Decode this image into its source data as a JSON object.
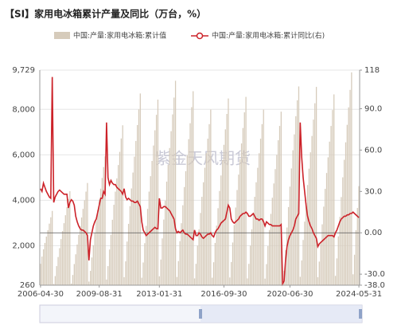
{
  "chart_data": {
    "type": "bar-line",
    "title": "【SI】家用电冰箱累计产量及同比（万台，%）",
    "watermark": "紫金天风期货",
    "categories": [
      "2006-04-30",
      null,
      null,
      null,
      null,
      null,
      null,
      null,
      null,
      null,
      null,
      null,
      null,
      null,
      null,
      null,
      null,
      null,
      null,
      null,
      null,
      null,
      null,
      null,
      null,
      null,
      null,
      null,
      null,
      null,
      null,
      null,
      null,
      null,
      null,
      null,
      null,
      null,
      null,
      null,
      "2009-08-31",
      null,
      null,
      null,
      null,
      null,
      null,
      null,
      null,
      null,
      null,
      null,
      null,
      null,
      null,
      null,
      null,
      null,
      null,
      null,
      null,
      null,
      null,
      null,
      null,
      null,
      null,
      null,
      null,
      null,
      null,
      null,
      null,
      null,
      null,
      null,
      null,
      null,
      null,
      null,
      null,
      "2013-01-31",
      null,
      null,
      null,
      null,
      null,
      null,
      null,
      null,
      null,
      null,
      null,
      null,
      null,
      null,
      null,
      null,
      null,
      null,
      null,
      null,
      null,
      null,
      null,
      null,
      null,
      null,
      null,
      null,
      null,
      null,
      null,
      null,
      null,
      null,
      null,
      null,
      null,
      null,
      null,
      null,
      null,
      null,
      null,
      "2016-09-30",
      null,
      null,
      null,
      null,
      null,
      null,
      null,
      null,
      null,
      null,
      null,
      null,
      null,
      null,
      null,
      null,
      null,
      null,
      null,
      null,
      null,
      null,
      null,
      null,
      null,
      null,
      null,
      null,
      null,
      null,
      null,
      null,
      null,
      null,
      null,
      null,
      null,
      null,
      null,
      null,
      null,
      null,
      null,
      null,
      "2020-06-30",
      null,
      null,
      null,
      null,
      null,
      null,
      null,
      null,
      null,
      null,
      null,
      null,
      null,
      null,
      null,
      null,
      null,
      null,
      null,
      null,
      null,
      null,
      null,
      null,
      null,
      null,
      null,
      null,
      null,
      null,
      null,
      null,
      null,
      null,
      null,
      null,
      null,
      null,
      null,
      null,
      null,
      null,
      null,
      null,
      null,
      null,
      "2024-05-31"
    ],
    "series": [
      {
        "name": "中国:产量:家用电冰箱:累计值",
        "color": "#d6cbbb",
        "values": [
          1200,
          1520,
          1840,
          2120,
          2400,
          2680,
          2970,
          3250,
          3530,
          310,
          660,
          1100,
          1500,
          1890,
          2290,
          2640,
          2990,
          3340,
          3700,
          4050,
          4400,
          330,
          710,
          1190,
          1620,
          2050,
          2480,
          2860,
          3240,
          3620,
          4000,
          4380,
          4760,
          420,
          890,
          1480,
          2020,
          2550,
          3080,
          3560,
          4030,
          4510,
          4980,
          5460,
          5930,
          510,
          1100,
          1830,
          2480,
          3140,
          3800,
          4380,
          4960,
          5550,
          6130,
          6720,
          7300,
          610,
          1310,
          2180,
          2960,
          3740,
          4520,
          5220,
          5920,
          6610,
          7310,
          8000,
          8700,
          590,
          1260,
          2110,
          2870,
          3620,
          4380,
          5060,
          5730,
          6410,
          7080,
          7760,
          8430,
          650,
          1390,
          2320,
          3150,
          3980,
          4820,
          5560,
          6300,
          7040,
          7780,
          8520,
          9260,
          620,
          1320,
          2200,
          2990,
          3780,
          4580,
          5280,
          5980,
          6690,
          7390,
          8100,
          8800,
          560,
          1200,
          2000,
          2720,
          3440,
          4150,
          4790,
          5430,
          6070,
          6710,
          7350,
          7990,
          590,
          1270,
          2120,
          2880,
          3650,
          4410,
          5090,
          5770,
          6440,
          7120,
          7800,
          8480,
          600,
          1280,
          2140,
          2910,
          3680,
          4450,
          5130,
          5810,
          6500,
          7180,
          7870,
          8550,
          560,
          1200,
          2000,
          2720,
          3440,
          4150,
          4790,
          5430,
          6070,
          6710,
          7350,
          7990,
          550,
          1190,
          1980,
          2690,
          3400,
          4110,
          4740,
          5370,
          6000,
          6640,
          7270,
          7900,
          420,
          890,
          1800,
          2800,
          3700,
          4600,
          5400,
          6200,
          6900,
          7700,
          8400,
          9010,
          630,
          1350,
          2250,
          3060,
          3870,
          4670,
          5390,
          6110,
          6830,
          7550,
          8270,
          8990,
          610,
          1300,
          2170,
          2940,
          3720,
          4500,
          5200,
          5890,
          6580,
          7270,
          7970,
          8660,
          670,
          1440,
          2410,
          3270,
          4140,
          5010,
          5780,
          6550,
          7320,
          8090,
          8860,
          9630,
          740,
          1600,
          2680,
          3660,
          4620
        ]
      },
      {
        "name": "中国:产量:家用电冰箱:累计同比(右)",
        "color": "#cc2229",
        "axis": "y2",
        "values": [
          32,
          30,
          36,
          33,
          30,
          28,
          26,
          25,
          113,
          22,
          26,
          28,
          30,
          31,
          30,
          29,
          28,
          28,
          28,
          18,
          22,
          24,
          23,
          20,
          12,
          8,
          5,
          3,
          2,
          2,
          1,
          0,
          -2,
          -20,
          -5,
          0,
          5,
          8,
          10,
          15,
          20,
          25,
          25,
          30,
          28,
          80,
          40,
          35,
          38,
          36,
          35,
          35,
          33,
          32,
          31,
          30,
          28,
          32,
          26,
          24,
          25,
          24,
          23,
          23,
          22,
          22,
          23,
          21,
          19,
          8,
          2,
          0,
          -2,
          -1,
          0,
          1,
          2,
          3,
          4,
          3,
          3,
          25,
          18,
          18,
          19,
          19,
          18,
          17,
          16,
          14,
          12,
          10,
          3,
          0,
          1,
          0,
          1,
          2,
          0,
          -1,
          -1,
          -2,
          -3,
          -4,
          -5,
          2,
          -2,
          -2,
          0,
          -1,
          -3,
          -4,
          -3,
          -2,
          -1,
          -1,
          0,
          -2,
          -3,
          0,
          2,
          3,
          5,
          7,
          8,
          9,
          10,
          15,
          20,
          18,
          10,
          8,
          7,
          8,
          9,
          10,
          12,
          13,
          14,
          14,
          15,
          14,
          12,
          12,
          13,
          14,
          12,
          10,
          10,
          9,
          10,
          10,
          8,
          5,
          8,
          7,
          6,
          6,
          5,
          5,
          5,
          5,
          5,
          5,
          6,
          -37,
          -35,
          -20,
          -10,
          -5,
          -2,
          0,
          2,
          5,
          10,
          12,
          14,
          80,
          55,
          40,
          30,
          20,
          12,
          8,
          5,
          3,
          0,
          -2,
          -4,
          -10,
          -8,
          -7,
          -6,
          -5,
          -4,
          -3,
          -2,
          -2,
          -2,
          -2,
          -3,
          0,
          2,
          5,
          8,
          10,
          11,
          12,
          12,
          13,
          13,
          14,
          14,
          15,
          14,
          13,
          12,
          11
        ]
      }
    ],
    "ylim": [
      260,
      9729
    ],
    "yticks": [
      260,
      {
        "value": 2000,
        "label": "2,000"
      },
      {
        "value": 4000,
        "label": "4,000"
      },
      {
        "value": 6000,
        "label": "6,000"
      },
      {
        "value": 8000,
        "label": "8,000"
      },
      {
        "value": 9729,
        "label": "9,729"
      }
    ],
    "y2lim": [
      -38,
      118
    ],
    "y2ticks": [
      {
        "value": -38,
        "label": "-38.0"
      },
      {
        "value": -30,
        "label": "-30.0"
      },
      {
        "value": 0,
        "label": "0.00"
      },
      {
        "value": 30,
        "label": "30.0"
      },
      {
        "value": 60,
        "label": "60.0"
      },
      {
        "value": 90,
        "label": "90.0"
      },
      118
    ],
    "grid": true
  }
}
